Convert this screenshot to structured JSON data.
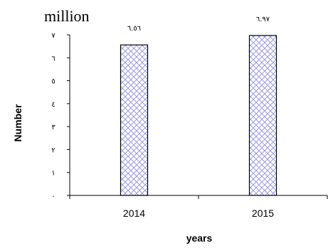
{
  "chart_data": {
    "type": "bar",
    "unit_label": "million",
    "xlabel": "years",
    "ylabel": "Number",
    "categories": [
      "2014",
      "2015"
    ],
    "values": [
      6.56,
      6.97
    ],
    "value_labels": [
      "٦.٥٦",
      "٦.٩٧"
    ],
    "ylim": [
      0,
      7
    ],
    "y_ticks": [
      0,
      1,
      2,
      3,
      4,
      5,
      6,
      7
    ],
    "y_tick_labels": [
      "٠",
      "١",
      "٢",
      "٣",
      "٤",
      "٥",
      "٦",
      "٧"
    ],
    "bar_pattern": "crosshatch",
    "bar_color": "#9a9ae8",
    "grid": false,
    "legend": "none"
  }
}
